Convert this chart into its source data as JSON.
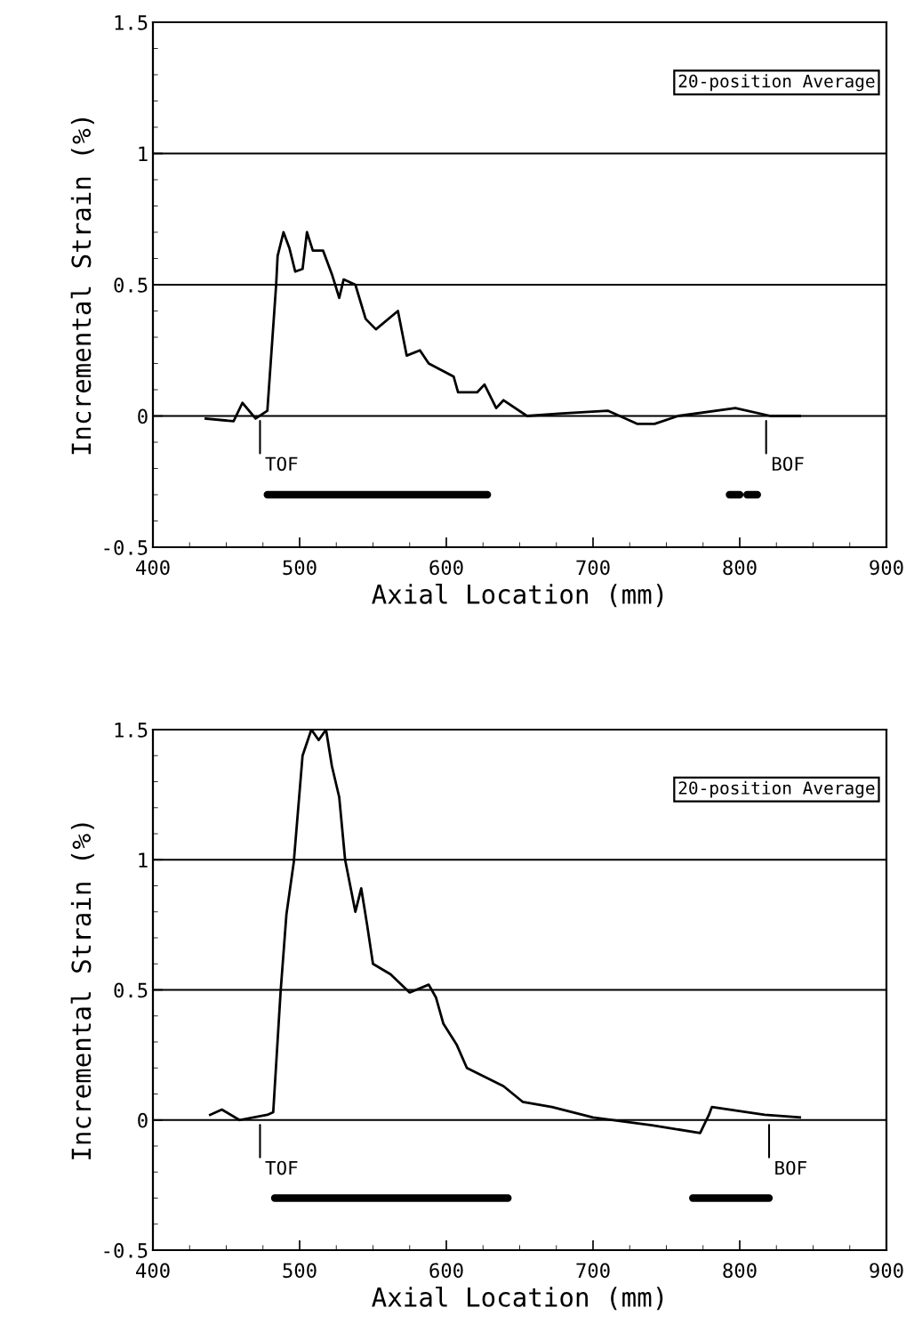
{
  "chart_data": [
    {
      "type": "step",
      "xlabel": "Axial Location (mm)",
      "ylabel": "Incremental Strain (%)",
      "xlim": [
        400,
        900
      ],
      "xticks": [
        400,
        500,
        600,
        700,
        800,
        900
      ],
      "ylim": [
        -0.5,
        1.5
      ],
      "yticks": [
        -0.5,
        0,
        0.5,
        1,
        1.5
      ],
      "grid": "y",
      "legend": false,
      "annotations": [
        "20-position Average",
        {
          "text": "TOF",
          "x": 473,
          "y": 0
        },
        {
          "text": "BOF",
          "x": 818,
          "y": 0
        }
      ],
      "series": [
        {
          "color": "#000000",
          "x": [
            436,
            455,
            461,
            470,
            478,
            484,
            485,
            489,
            493,
            497,
            502,
            505,
            509,
            516,
            522,
            527,
            530,
            538,
            545,
            552,
            567,
            573,
            582,
            588,
            605,
            608,
            621,
            626,
            634,
            639,
            655,
            679,
            710,
            730,
            742,
            758,
            797,
            821,
            841
          ],
          "values": [
            -0.01,
            -0.02,
            0.05,
            -0.01,
            0.02,
            0.5,
            0.61,
            0.7,
            0.64,
            0.55,
            0.56,
            0.7,
            0.63,
            0.63,
            0.54,
            0.45,
            0.52,
            0.5,
            0.37,
            0.33,
            0.4,
            0.23,
            0.25,
            0.2,
            0.15,
            0.09,
            0.09,
            0.12,
            0.03,
            0.06,
            0.0,
            0.01,
            0.02,
            -0.03,
            -0.03,
            0.0,
            0.03,
            0.0,
            0.0
          ]
        },
        {
          "type": "line",
          "color": "#000000",
          "x": [
            478,
            628,
            629,
            793,
            800,
            801,
            805,
            812
          ],
          "values": [
            -0.3,
            -0.3,
            null,
            -0.3,
            -0.3,
            null,
            -0.3,
            -0.3
          ]
        }
      ]
    },
    {
      "type": "step",
      "xlabel": "Axial Location (mm)",
      "ylabel": "Incremental Strain (%)",
      "xlim": [
        400,
        900
      ],
      "xticks": [
        400,
        500,
        600,
        700,
        800,
        900
      ],
      "ylim": [
        -0.5,
        1.5
      ],
      "yticks": [
        -0.5,
        0,
        0.5,
        1,
        1.5
      ],
      "grid": "y",
      "legend": false,
      "annotations": [
        "20-position Average",
        {
          "text": "TOF",
          "x": 473,
          "y": 0
        },
        {
          "text": "BOF",
          "x": 820,
          "y": 0
        }
      ],
      "series": [
        {
          "color": "#000000",
          "x": [
            439,
            447,
            459,
            478,
            482,
            487,
            491,
            496,
            502,
            508,
            513,
            518,
            522,
            527,
            531,
            538,
            542,
            546,
            550,
            562,
            575,
            588,
            593,
            598,
            607,
            614,
            639,
            652,
            672,
            700,
            740,
            773,
            779,
            781,
            817,
            841
          ],
          "values": [
            0.02,
            0.04,
            0.0,
            0.02,
            0.03,
            0.49,
            0.79,
            0.99,
            1.4,
            1.5,
            1.46,
            1.5,
            1.36,
            1.24,
            1.0,
            0.8,
            0.89,
            0.75,
            0.6,
            0.56,
            0.49,
            0.52,
            0.47,
            0.37,
            0.29,
            0.2,
            0.13,
            0.07,
            0.05,
            0.01,
            -0.02,
            -0.05,
            0.02,
            0.05,
            0.02,
            0.01
          ]
        },
        {
          "type": "line",
          "color": "#000000",
          "x": [
            483,
            642,
            643,
            768,
            820
          ],
          "values": [
            -0.3,
            -0.3,
            null,
            -0.3,
            -0.3
          ]
        }
      ]
    }
  ]
}
